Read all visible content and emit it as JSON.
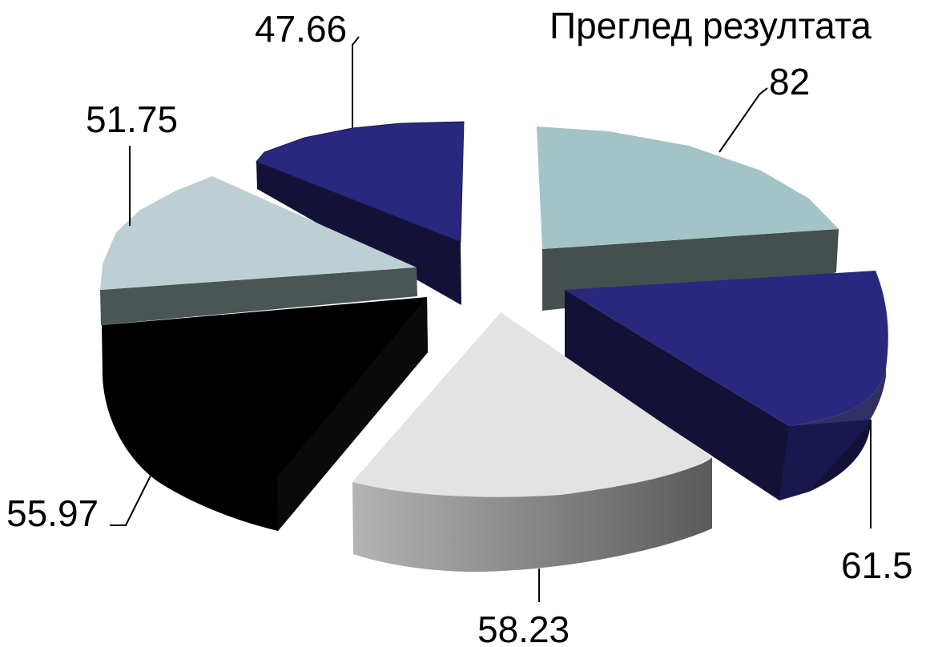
{
  "chart_data": {
    "type": "pie",
    "title": "Преглед резултата",
    "categories": [
      "",
      "",
      "",
      "",
      "",
      ""
    ],
    "values": [
      82,
      61.5,
      58.23,
      55.97,
      51.75,
      47.66
    ],
    "data_labels": [
      "82",
      "61.5",
      "58.23",
      "55.97",
      "51.75",
      "47.66"
    ],
    "exploded": true,
    "three_d": true,
    "colors": {
      "slice_top": [
        "#a3c3c6",
        "#29287e",
        "#e3e3e3",
        "#000000",
        "#bcd0d4",
        "#29287e"
      ],
      "slice_side": [
        "#444f4f",
        "#131236",
        "#7a7a7a",
        "#050505",
        "#4a5656",
        "#131236"
      ]
    }
  }
}
